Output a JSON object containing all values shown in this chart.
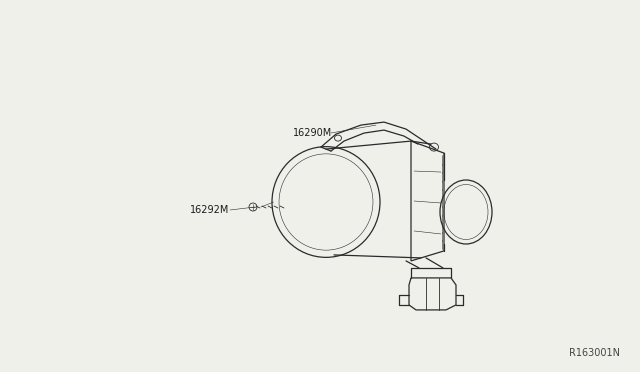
{
  "background_color": "#f5f5f0",
  "diagram_id": "R163001N",
  "label_16290M": "16290M",
  "label_16292M": "16292M",
  "line_color": "#2a2a2a",
  "text_color": "#1a1a1a",
  "diagram_id_color": "#444444",
  "figsize": [
    6.4,
    3.72
  ],
  "dpi": 100,
  "fig_bg": "#f0f0eb",
  "drawing_bg": "#f0f0eb"
}
